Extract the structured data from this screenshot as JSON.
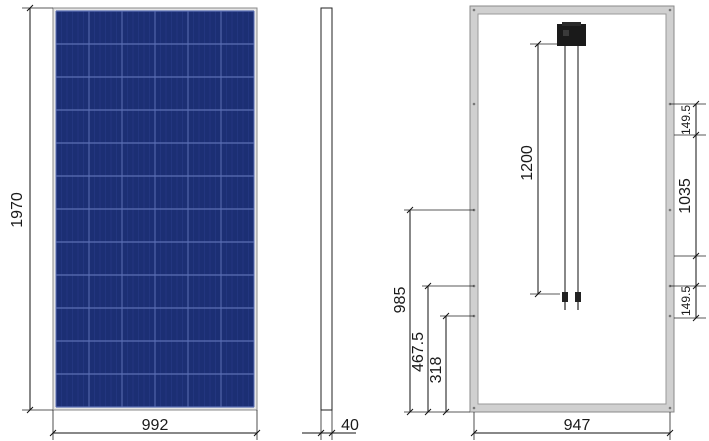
{
  "front_view": {
    "height_label": "1970",
    "width_label": "992",
    "cell_grid": {
      "rows": 12,
      "columns": 6
    }
  },
  "side_view": {
    "thickness_label": "40"
  },
  "back_view": {
    "width_label": "947",
    "cable_length_label": "1200",
    "hole_spacing_label": "1035",
    "top_offset_label": "149.5",
    "bottom_offset_label": "149.5",
    "mount_height_985_label": "985",
    "mount_height_467_label": "467.5",
    "mount_height_318_label": "318"
  },
  "colors": {
    "cell_blue": "#1c2f74",
    "cell_line": "#5b6fb5",
    "frame": "#cfcfcf",
    "frame_edge": "#8a8a8a",
    "junction_box": "#1a1a1a"
  }
}
